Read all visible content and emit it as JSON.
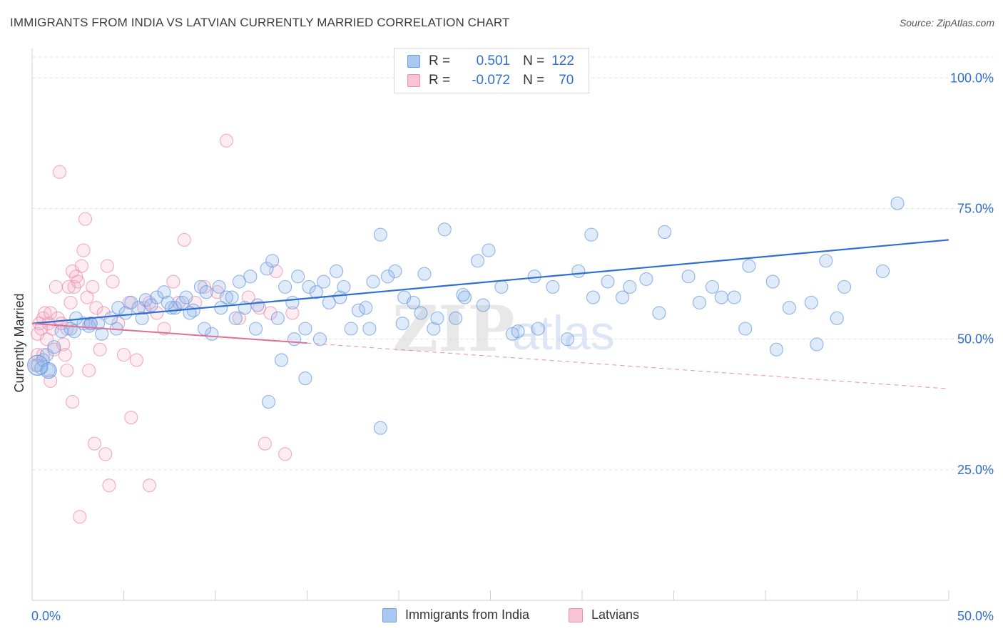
{
  "title": "IMMIGRANTS FROM INDIA VS LATVIAN CURRENTLY MARRIED CORRELATION CHART",
  "source": "Source: ZipAtlas.com",
  "colors": {
    "india": "#6d9be0",
    "latvian": "#ec8fae",
    "india_line": "#2f6fd0",
    "latvian_line": "#e0709a",
    "tick_label": "#2f6fd0"
  },
  "legend": {
    "rows": [
      {
        "r_label": "R =",
        "r_value": "0.501",
        "n_label": "N =",
        "n_value": "122"
      },
      {
        "r_label": "R =",
        "r_value": "-0.072",
        "n_label": "N =",
        "n_value": "70"
      }
    ]
  },
  "bottom_legend": {
    "india": "Immigrants from India",
    "latvian": "Latvians"
  },
  "watermark": {
    "zip": "ZIP",
    "atlas": "atlas"
  },
  "chart_data": {
    "type": "scatter",
    "title": "IMMIGRANTS FROM INDIA VS LATVIAN CURRENTLY MARRIED CORRELATION CHART",
    "xlabel": "",
    "ylabel": "Currently Married",
    "xlim": [
      0,
      50
    ],
    "ylim": [
      0,
      104
    ],
    "x_tick_labels": [
      "0.0%",
      "50.0%"
    ],
    "y_ticks": [
      25,
      50,
      75,
      100
    ],
    "y_tick_labels": [
      "25.0%",
      "50.0%",
      "75.0%",
      "100.0%"
    ],
    "grid": true,
    "legend_position": "top-center",
    "series": [
      {
        "name": "Immigrants from India",
        "R": 0.501,
        "N": 122,
        "trend": {
          "x": [
            0,
            50
          ],
          "y": [
            53.0,
            69.0
          ],
          "solid_to": 50
        },
        "points": [
          [
            0.3,
            45
          ],
          [
            0.5,
            44.5
          ],
          [
            0.6,
            46
          ],
          [
            0.9,
            44
          ],
          [
            0.8,
            47
          ],
          [
            1.2,
            48.5
          ],
          [
            1.6,
            51.5
          ],
          [
            2.1,
            52
          ],
          [
            2.3,
            51.5
          ],
          [
            2.4,
            54
          ],
          [
            2.8,
            53
          ],
          [
            3.1,
            52.5
          ],
          [
            3.6,
            53
          ],
          [
            3.8,
            51
          ],
          [
            4.3,
            54
          ],
          [
            4.7,
            56
          ],
          [
            5.1,
            55
          ],
          [
            5.4,
            57
          ],
          [
            5.8,
            56
          ],
          [
            6.2,
            57.5
          ],
          [
            6.5,
            56.5
          ],
          [
            6.8,
            58
          ],
          [
            7.2,
            59
          ],
          [
            7.6,
            56
          ],
          [
            7.8,
            56
          ],
          [
            8.2,
            57
          ],
          [
            8.4,
            58
          ],
          [
            8.8,
            55.5
          ],
          [
            9.2,
            60
          ],
          [
            9.5,
            59
          ],
          [
            9.8,
            51
          ],
          [
            10.2,
            60
          ],
          [
            10.6,
            58
          ],
          [
            10.9,
            58
          ],
          [
            11.3,
            61
          ],
          [
            11.6,
            56
          ],
          [
            11.9,
            62
          ],
          [
            12.3,
            56.5
          ],
          [
            12.8,
            63.5
          ],
          [
            13.1,
            65
          ],
          [
            13.4,
            54
          ],
          [
            13.8,
            60
          ],
          [
            14.2,
            57
          ],
          [
            14.5,
            62
          ],
          [
            14.9,
            52
          ],
          [
            15.1,
            60
          ],
          [
            15.5,
            59
          ],
          [
            15.9,
            61
          ],
          [
            16.2,
            57
          ],
          [
            16.6,
            63
          ],
          [
            17.0,
            60
          ],
          [
            17.4,
            52
          ],
          [
            17.8,
            55.5
          ],
          [
            18.2,
            56
          ],
          [
            18.6,
            61
          ],
          [
            19.0,
            70
          ],
          [
            19.4,
            62
          ],
          [
            19.8,
            63
          ],
          [
            20.3,
            58
          ],
          [
            20.8,
            57
          ],
          [
            21.4,
            62.5
          ],
          [
            21.9,
            52
          ],
          [
            22.5,
            71
          ],
          [
            23.1,
            54
          ],
          [
            23.6,
            58
          ],
          [
            24.3,
            65
          ],
          [
            24.9,
            67
          ],
          [
            25.6,
            60
          ],
          [
            26.2,
            51
          ],
          [
            27.4,
            62
          ],
          [
            28.4,
            60
          ],
          [
            29.8,
            63
          ],
          [
            30.5,
            70
          ],
          [
            31.4,
            61
          ],
          [
            32.2,
            58
          ],
          [
            33.5,
            61.5
          ],
          [
            34.5,
            70.5
          ],
          [
            35.8,
            62
          ],
          [
            37.1,
            60
          ],
          [
            38.3,
            58
          ],
          [
            39.1,
            64
          ],
          [
            40.4,
            61
          ],
          [
            41.3,
            56
          ],
          [
            42.5,
            57
          ],
          [
            43.3,
            65
          ],
          [
            44.3,
            60
          ],
          [
            3.2,
            53
          ],
          [
            4.6,
            52
          ],
          [
            6.0,
            54
          ],
          [
            7.4,
            57
          ],
          [
            8.6,
            55
          ],
          [
            9.4,
            52
          ],
          [
            10.3,
            56
          ],
          [
            11.1,
            54
          ],
          [
            12.2,
            52
          ],
          [
            14.3,
            50
          ],
          [
            15.7,
            50
          ],
          [
            13.6,
            46
          ],
          [
            14.9,
            42.5
          ],
          [
            16.8,
            58
          ],
          [
            18.4,
            52
          ],
          [
            20.2,
            53
          ],
          [
            21.2,
            55
          ],
          [
            22.1,
            54
          ],
          [
            23.5,
            58.5
          ],
          [
            24.6,
            56.5
          ],
          [
            26.5,
            51.5
          ],
          [
            27.6,
            52
          ],
          [
            29.2,
            50
          ],
          [
            30.6,
            58
          ],
          [
            32.6,
            60
          ],
          [
            34.2,
            55
          ],
          [
            36.4,
            57
          ],
          [
            37.6,
            58
          ],
          [
            38.9,
            52
          ],
          [
            40.6,
            48
          ],
          [
            42.8,
            49
          ],
          [
            43.9,
            54
          ],
          [
            46.4,
            63
          ],
          [
            47.2,
            76
          ],
          [
            12.9,
            38
          ],
          [
            19.0,
            33
          ]
        ]
      },
      {
        "name": "Latvians",
        "R": -0.072,
        "N": 70,
        "trend": {
          "x": [
            0,
            50
          ],
          "y": [
            53.0,
            40.5
          ],
          "solid_to": 15
        },
        "points": [
          [
            0.2,
            45
          ],
          [
            0.3,
            47
          ],
          [
            0.3,
            51
          ],
          [
            0.4,
            53
          ],
          [
            0.5,
            52
          ],
          [
            0.6,
            54
          ],
          [
            0.7,
            55
          ],
          [
            0.8,
            50
          ],
          [
            0.9,
            53
          ],
          [
            1.0,
            55
          ],
          [
            1.1,
            52
          ],
          [
            1.2,
            48
          ],
          [
            1.3,
            60
          ],
          [
            1.4,
            54
          ],
          [
            1.6,
            53
          ],
          [
            1.7,
            49
          ],
          [
            1.8,
            47
          ],
          [
            1.9,
            52
          ],
          [
            2.0,
            60
          ],
          [
            2.1,
            57
          ],
          [
            2.2,
            63
          ],
          [
            2.3,
            60
          ],
          [
            2.4,
            62
          ],
          [
            2.5,
            61
          ],
          [
            2.7,
            64
          ],
          [
            2.8,
            67
          ],
          [
            2.9,
            73
          ],
          [
            3.0,
            58
          ],
          [
            3.2,
            53
          ],
          [
            3.3,
            60
          ],
          [
            3.5,
            56
          ],
          [
            3.7,
            48
          ],
          [
            3.9,
            55
          ],
          [
            4.1,
            64
          ],
          [
            4.4,
            61
          ],
          [
            4.7,
            53
          ],
          [
            5.0,
            47
          ],
          [
            5.3,
            57
          ],
          [
            5.7,
            46
          ],
          [
            6.1,
            56
          ],
          [
            6.4,
            57
          ],
          [
            6.8,
            55
          ],
          [
            7.2,
            52
          ],
          [
            7.7,
            61
          ],
          [
            8.3,
            69
          ],
          [
            8.9,
            57
          ],
          [
            9.4,
            60
          ],
          [
            10.1,
            59
          ],
          [
            10.6,
            88
          ],
          [
            11.3,
            54
          ],
          [
            11.8,
            58
          ],
          [
            12.4,
            56
          ],
          [
            13.0,
            55
          ],
          [
            13.3,
            63
          ],
          [
            13.8,
            28
          ],
          [
            14.2,
            55
          ],
          [
            1.5,
            82
          ],
          [
            3.4,
            30
          ],
          [
            4.0,
            28
          ],
          [
            4.2,
            22
          ],
          [
            3.1,
            44
          ],
          [
            2.2,
            38
          ],
          [
            5.4,
            35
          ],
          [
            6.4,
            22
          ],
          [
            12.7,
            30
          ],
          [
            2.6,
            16
          ],
          [
            1.0,
            42
          ],
          [
            0.6,
            47
          ],
          [
            1.9,
            44
          ],
          [
            8.0,
            57
          ]
        ]
      }
    ]
  }
}
